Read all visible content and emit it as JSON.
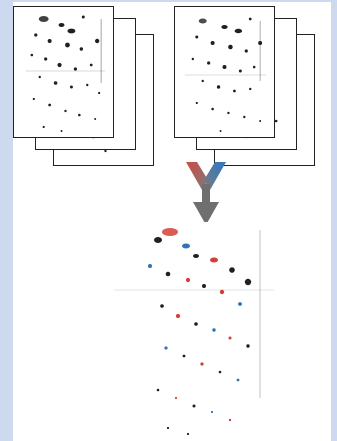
{
  "colors": {
    "background": "#ccd9ef",
    "panel": "#ffffff",
    "spot_dark": "#1f2024",
    "spot_red": "#d33f37",
    "spot_blue": "#2f73b8",
    "arrow_red": "#cf4a44",
    "arrow_blue": "#2d78c8",
    "arrow_gray": "#6f6f6f"
  },
  "icons": {
    "left_stack": "gel-stack-icon",
    "right_stack": "gel-stack-icon",
    "merge_arrow": "merge-arrow-icon",
    "merged_gel": "merged-gel-icon"
  }
}
